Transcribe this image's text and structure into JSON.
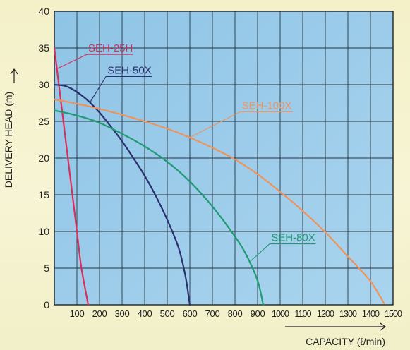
{
  "chart_data": {
    "type": "line",
    "title": "",
    "xlabel": "CAPACITY (ℓ/min)",
    "ylabel": "DELIVERY HEAD (m)",
    "xlim": [
      0,
      1500
    ],
    "ylim": [
      0,
      40
    ],
    "x_ticks": [
      "100",
      "200",
      "300",
      "400",
      "500",
      "600",
      "700",
      "800",
      "900",
      "1000",
      "1100",
      "1200",
      "1300",
      "1400",
      "1500"
    ],
    "y_ticks": [
      "0",
      "5",
      "10",
      "15",
      "20",
      "25",
      "30",
      "35",
      "40"
    ],
    "grid": true,
    "series": [
      {
        "name": "SEH-25H",
        "color": "#d8305a",
        "points": [
          [
            0,
            35
          ],
          [
            20,
            30
          ],
          [
            40,
            25
          ],
          [
            60,
            20
          ],
          [
            80,
            15
          ],
          [
            100,
            10
          ],
          [
            120,
            5
          ],
          [
            150,
            0
          ]
        ]
      },
      {
        "name": "SEH-50X",
        "color": "#2a2f6e",
        "points": [
          [
            0,
            30
          ],
          [
            50,
            29.8
          ],
          [
            100,
            29
          ],
          [
            150,
            27.8
          ],
          [
            200,
            26.2
          ],
          [
            250,
            24.3
          ],
          [
            300,
            22.3
          ],
          [
            350,
            20
          ],
          [
            400,
            17.6
          ],
          [
            450,
            14.8
          ],
          [
            500,
            11.6
          ],
          [
            550,
            7.8
          ],
          [
            580,
            4
          ],
          [
            600,
            0
          ]
        ]
      },
      {
        "name": "SEH-80X",
        "color": "#1f9a72",
        "points": [
          [
            0,
            26.5
          ],
          [
            100,
            25.8
          ],
          [
            200,
            24.8
          ],
          [
            300,
            23.3
          ],
          [
            400,
            21.6
          ],
          [
            500,
            19.5
          ],
          [
            600,
            16.8
          ],
          [
            700,
            13.4
          ],
          [
            800,
            9.3
          ],
          [
            850,
            6.8
          ],
          [
            900,
            3.3
          ],
          [
            925,
            0
          ]
        ]
      },
      {
        "name": "SEH-100X",
        "color": "#f0925a",
        "points": [
          [
            0,
            28
          ],
          [
            100,
            27.4
          ],
          [
            200,
            26.7
          ],
          [
            300,
            25.9
          ],
          [
            400,
            25
          ],
          [
            500,
            24
          ],
          [
            600,
            22.8
          ],
          [
            700,
            21.4
          ],
          [
            800,
            19.8
          ],
          [
            900,
            17.8
          ],
          [
            1000,
            15.4
          ],
          [
            1100,
            12.8
          ],
          [
            1200,
            9.9
          ],
          [
            1300,
            6.6
          ],
          [
            1400,
            3.2
          ],
          [
            1460,
            0.2
          ]
        ]
      }
    ],
    "labels": [
      {
        "series": "SEH-25H",
        "text": "SEH-25H",
        "anchor": [
          14,
          32.2
        ],
        "pos": [
          150,
          34.5
        ]
      },
      {
        "series": "SEH-50X",
        "text": "SEH-50X",
        "anchor": [
          160,
          27.7
        ],
        "pos": [
          235,
          31.5
        ]
      },
      {
        "series": "SEH-100X",
        "text": "SEH-100X",
        "anchor": [
          600,
          22.8
        ],
        "pos": [
          830,
          26.7
        ]
      },
      {
        "series": "SEH-80X",
        "text": "SEH-80X",
        "anchor": [
          870,
          6.0
        ],
        "pos": [
          960,
          8.7
        ]
      }
    ]
  }
}
